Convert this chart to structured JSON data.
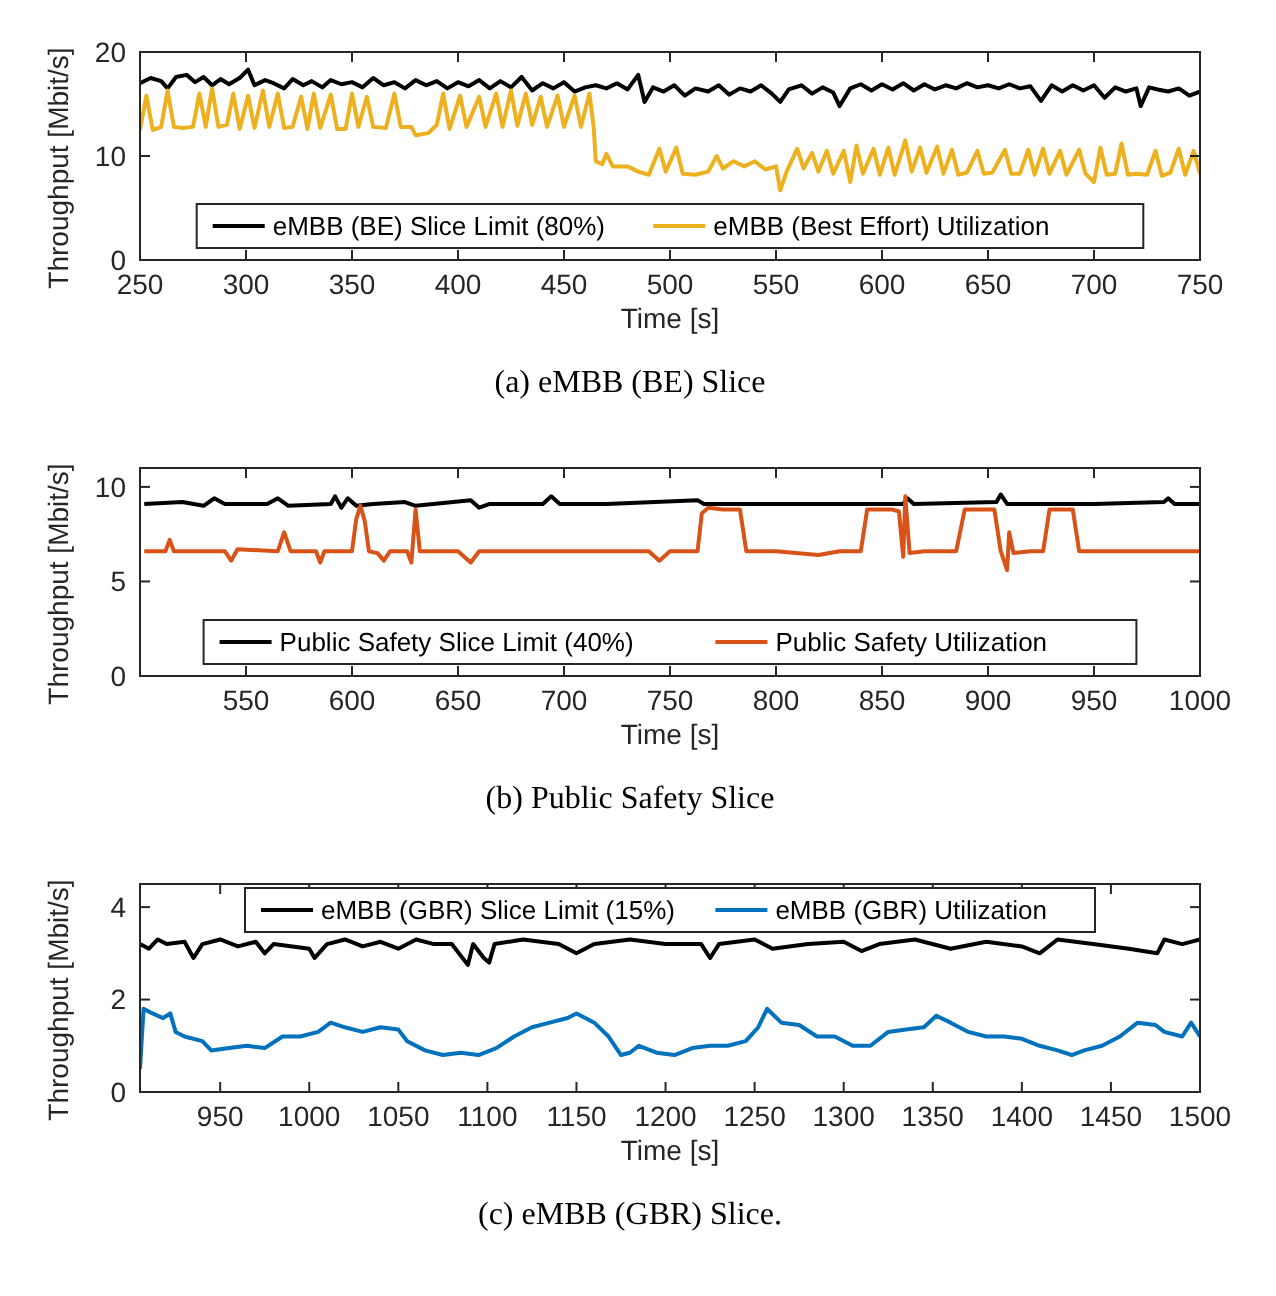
{
  "chart_data": [
    {
      "type": "line",
      "title": "(a) eMBB (BE) Slice",
      "xlabel": "Time [s]",
      "ylabel": "Throughput [Mbit/s]",
      "xlim": [
        250,
        750
      ],
      "xticks": [
        250,
        300,
        350,
        400,
        450,
        500,
        550,
        600,
        650,
        700,
        750
      ],
      "ylim": [
        0,
        20
      ],
      "yticks": [
        0,
        10,
        20
      ],
      "legend": "bottom",
      "series": [
        {
          "name": "eMBB (BE) Slice Limit (80%)",
          "color": "#000000",
          "x": [
            250,
            255,
            260,
            263,
            267,
            272,
            276,
            280,
            284,
            288,
            292,
            297,
            301,
            304,
            309,
            313,
            318,
            322,
            327,
            331,
            336,
            340,
            345,
            350,
            355,
            360,
            365,
            370,
            375,
            380,
            385,
            390,
            395,
            400,
            405,
            410,
            415,
            420,
            425,
            430,
            435,
            440,
            445,
            450,
            455,
            460,
            465,
            470,
            475,
            480,
            485,
            488,
            492,
            497,
            502,
            507,
            512,
            518,
            523,
            528,
            533,
            538,
            543,
            548,
            552,
            556,
            562,
            567,
            572,
            577,
            580,
            585,
            590,
            595,
            600,
            605,
            610,
            615,
            620,
            625,
            630,
            635,
            640,
            645,
            650,
            655,
            660,
            665,
            670,
            675,
            680,
            685,
            690,
            695,
            700,
            705,
            710,
            715,
            720,
            722,
            726,
            730,
            735,
            740,
            745,
            750
          ],
          "values": [
            17,
            17.5,
            17.2,
            16.5,
            17.6,
            17.8,
            17.1,
            17.6,
            16.8,
            17.4,
            16.9,
            17.5,
            18.3,
            16.8,
            17.3,
            17,
            16.5,
            17.4,
            16.8,
            17.2,
            16.6,
            17.3,
            16.9,
            17.1,
            16.6,
            17.5,
            16.8,
            17.1,
            16.5,
            17.3,
            16.8,
            17.2,
            16.5,
            17.1,
            16.7,
            17.3,
            16.5,
            17.2,
            16.6,
            17.6,
            16.3,
            17,
            16.5,
            17.1,
            16.2,
            16.6,
            16.8,
            16.5,
            17,
            16.4,
            17.8,
            15.2,
            16.6,
            16.2,
            16.8,
            15.8,
            16.5,
            16.2,
            16.8,
            15.9,
            16.5,
            16.2,
            16.8,
            16,
            15.2,
            16.4,
            16.8,
            16,
            16.6,
            16.1,
            14.8,
            16.5,
            16.9,
            16.3,
            16.9,
            16.4,
            17,
            16.3,
            16.9,
            16.4,
            16.8,
            16.5,
            17,
            16.6,
            16.8,
            16.5,
            16.9,
            16.5,
            16.7,
            15.3,
            16.8,
            16.2,
            16.8,
            16.3,
            16.8,
            15.6,
            16.6,
            16.2,
            16.5,
            14.8,
            16.6,
            16.4,
            16.2,
            16.5,
            15.8,
            16.2
          ]
        },
        {
          "name": "eMBB (Best Effort) Utilization",
          "color": "#edb120",
          "x": [
            250,
            253,
            256,
            260,
            263,
            266,
            270,
            275,
            278,
            281,
            284,
            287,
            291,
            294,
            297,
            301,
            304,
            308,
            311,
            315,
            318,
            322,
            326,
            329,
            332,
            335,
            340,
            343,
            347,
            350,
            353,
            357,
            360,
            366,
            370,
            373,
            378,
            380,
            386,
            390,
            393,
            396,
            401,
            404,
            410,
            413,
            418,
            421,
            425,
            428,
            432,
            435,
            439,
            442,
            447,
            450,
            455,
            458,
            462,
            464,
            465,
            468,
            470,
            473,
            480,
            485,
            490,
            495,
            498,
            503,
            506,
            512,
            518,
            522,
            525,
            530,
            535,
            540,
            545,
            550,
            552,
            555,
            560,
            563,
            567,
            570,
            574,
            577,
            582,
            585,
            588,
            591,
            596,
            599,
            603,
            606,
            611,
            614,
            618,
            621,
            626,
            629,
            633,
            636,
            640,
            645,
            648,
            652,
            658,
            661,
            665,
            669,
            672,
            676,
            679,
            684,
            687,
            693,
            696,
            700,
            703,
            706,
            710,
            713,
            716,
            720,
            725,
            729,
            732,
            736,
            740,
            743,
            747,
            750
          ],
          "values": [
            12.5,
            15.8,
            12.5,
            12.8,
            16.3,
            12.8,
            12.7,
            12.8,
            16,
            12.8,
            16.5,
            12.8,
            13,
            16,
            12.6,
            15.8,
            12.7,
            16.3,
            12.8,
            16,
            12.7,
            12.8,
            15.7,
            12.6,
            16,
            12.7,
            15.9,
            12.6,
            12.6,
            16,
            12.8,
            15.7,
            12.8,
            12.7,
            16,
            12.8,
            12.8,
            12,
            12.2,
            13,
            16,
            12.6,
            15.8,
            12.8,
            15.7,
            12.8,
            16,
            12.8,
            16.3,
            12.9,
            16,
            13,
            15.7,
            12.8,
            15.8,
            12.8,
            15.8,
            12.8,
            16,
            12.8,
            9.5,
            9.2,
            10.2,
            9,
            9,
            8.5,
            8.2,
            10.7,
            8.5,
            10.8,
            8.3,
            8.2,
            8.5,
            10,
            8.8,
            9.5,
            9,
            9.5,
            8.7,
            9,
            6.7,
            8.5,
            10.7,
            8.8,
            10.3,
            8.5,
            10.5,
            8.3,
            10.5,
            7.5,
            11,
            8.3,
            10.7,
            8.2,
            10.8,
            8.2,
            11.5,
            8.5,
            10.8,
            8.4,
            10.9,
            8.3,
            10.6,
            8.2,
            8.4,
            10.5,
            8.3,
            8.4,
            10.6,
            8.3,
            8.3,
            10.6,
            8.2,
            10.7,
            8.3,
            10.5,
            8.2,
            10.6,
            8.3,
            7.5,
            10.8,
            8.2,
            8.3,
            11.2,
            8.2,
            8.3,
            8.2,
            10.5,
            8.1,
            8.4,
            10.7,
            8.2,
            10.5,
            8.3
          ]
        }
      ]
    },
    {
      "type": "line",
      "title": "(b) Public Safety Slice",
      "xlabel": "Time [s]",
      "ylabel": "Throughput [Mbit/s]",
      "xlim": [
        500,
        1000
      ],
      "xticks": [
        550,
        600,
        650,
        700,
        750,
        800,
        850,
        900,
        950,
        1000
      ],
      "ylim": [
        0,
        11
      ],
      "yticks": [
        0,
        5,
        10
      ],
      "legend": "bottom",
      "series": [
        {
          "name": "Public Safety Slice Limit (40%)",
          "color": "#000000",
          "x": [
            502,
            520,
            530,
            535,
            540,
            560,
            565,
            570,
            590,
            592,
            595,
            598,
            602,
            610,
            625,
            630,
            656,
            660,
            665,
            690,
            694,
            698,
            720,
            763,
            766,
            800,
            860,
            862,
            865,
            904,
            906,
            909,
            950,
            983,
            985,
            988,
            1000
          ],
          "values": [
            9.1,
            9.2,
            9,
            9.4,
            9.1,
            9.1,
            9.4,
            9,
            9.1,
            9.5,
            8.9,
            9.4,
            9,
            9.1,
            9.2,
            9,
            9.3,
            8.9,
            9.1,
            9.1,
            9.5,
            9.1,
            9.1,
            9.3,
            9.1,
            9.1,
            9.1,
            9.4,
            9.1,
            9.2,
            9.6,
            9.1,
            9.1,
            9.2,
            9.4,
            9.1,
            9.1
          ]
        },
        {
          "name": "Public Safety Utilization",
          "color": "#d95319",
          "x": [
            502,
            512,
            514,
            516,
            540,
            543,
            546,
            565,
            568,
            571,
            583,
            585,
            587,
            600,
            602,
            604,
            606,
            608,
            612,
            615,
            618,
            626,
            628,
            630,
            632,
            650,
            656,
            660,
            700,
            740,
            745,
            750,
            760,
            763,
            765,
            768,
            775,
            780,
            783,
            786,
            800,
            820,
            830,
            840,
            843,
            855,
            858,
            860,
            861,
            863,
            870,
            885,
            889,
            900,
            903,
            906,
            909,
            910,
            912,
            920,
            926,
            929,
            940,
            943,
            960,
            980,
            1000
          ],
          "values": [
            6.6,
            6.6,
            7.2,
            6.6,
            6.6,
            6.1,
            6.7,
            6.6,
            7.6,
            6.6,
            6.6,
            6,
            6.6,
            6.6,
            8.3,
            9,
            8.2,
            6.6,
            6.5,
            6.1,
            6.6,
            6.6,
            6,
            8.8,
            6.6,
            6.6,
            6,
            6.6,
            6.6,
            6.6,
            6.1,
            6.6,
            6.6,
            6.6,
            8.6,
            8.9,
            8.8,
            8.8,
            8.8,
            6.6,
            6.6,
            6.4,
            6.6,
            6.6,
            8.8,
            8.8,
            8.7,
            6.3,
            9.5,
            6.5,
            6.6,
            6.6,
            8.8,
            8.8,
            8.8,
            6.6,
            5.6,
            7.6,
            6.5,
            6.6,
            6.6,
            8.8,
            8.8,
            6.6,
            6.6,
            6.6,
            6.6
          ]
        }
      ]
    },
    {
      "type": "line",
      "title": "(c) eMBB (GBR) Slice.",
      "xlabel": "Time [s]",
      "ylabel": "Throughput [Mbit/s]",
      "xlim": [
        905,
        1500
      ],
      "xticks": [
        950,
        1000,
        1050,
        1100,
        1150,
        1200,
        1250,
        1300,
        1350,
        1400,
        1450,
        1500
      ],
      "ylim": [
        0,
        4.5
      ],
      "yticks": [
        0,
        2,
        4
      ],
      "legend": "top",
      "series": [
        {
          "name": "eMBB (GBR) Slice Limit (15%)",
          "color": "#000000",
          "x": [
            905,
            910,
            915,
            920,
            930,
            935,
            940,
            950,
            960,
            970,
            975,
            980,
            1000,
            1003,
            1010,
            1020,
            1030,
            1040,
            1050,
            1060,
            1070,
            1080,
            1089,
            1092,
            1098,
            1101,
            1104,
            1120,
            1140,
            1150,
            1160,
            1180,
            1200,
            1220,
            1225,
            1230,
            1250,
            1260,
            1280,
            1300,
            1310,
            1320,
            1340,
            1360,
            1380,
            1400,
            1410,
            1420,
            1440,
            1460,
            1476,
            1480,
            1490,
            1500
          ],
          "values": [
            3.2,
            3.1,
            3.3,
            3.2,
            3.25,
            2.9,
            3.2,
            3.3,
            3.15,
            3.25,
            3,
            3.2,
            3.1,
            2.9,
            3.2,
            3.3,
            3.15,
            3.25,
            3.1,
            3.3,
            3.2,
            3.2,
            2.75,
            3.2,
            2.9,
            2.8,
            3.2,
            3.3,
            3.2,
            3,
            3.2,
            3.3,
            3.2,
            3.2,
            2.9,
            3.2,
            3.3,
            3.1,
            3.2,
            3.25,
            3.05,
            3.2,
            3.3,
            3.1,
            3.25,
            3.15,
            3,
            3.3,
            3.2,
            3.1,
            3,
            3.3,
            3.2,
            3.3
          ]
        },
        {
          "name": "eMBB (GBR) Utilization",
          "color": "#0072bd",
          "x": [
            905,
            907,
            912,
            918,
            922,
            925,
            930,
            940,
            945,
            955,
            965,
            975,
            985,
            995,
            1005,
            1012,
            1020,
            1030,
            1040,
            1050,
            1055,
            1065,
            1075,
            1085,
            1095,
            1105,
            1115,
            1125,
            1135,
            1145,
            1150,
            1160,
            1168,
            1175,
            1180,
            1185,
            1195,
            1205,
            1215,
            1225,
            1235,
            1245,
            1252,
            1257,
            1265,
            1275,
            1285,
            1295,
            1305,
            1315,
            1325,
            1335,
            1345,
            1352,
            1360,
            1370,
            1380,
            1390,
            1400,
            1410,
            1420,
            1428,
            1435,
            1445,
            1455,
            1465,
            1475,
            1480,
            1490,
            1495,
            1500
          ],
          "values": [
            0.5,
            1.8,
            1.7,
            1.6,
            1.7,
            1.3,
            1.2,
            1.1,
            0.9,
            0.95,
            1,
            0.95,
            1.2,
            1.2,
            1.3,
            1.5,
            1.4,
            1.3,
            1.4,
            1.35,
            1.1,
            0.9,
            0.8,
            0.85,
            0.8,
            0.95,
            1.2,
            1.4,
            1.5,
            1.6,
            1.7,
            1.5,
            1.2,
            0.8,
            0.85,
            1,
            0.85,
            0.8,
            0.95,
            1,
            1,
            1.1,
            1.4,
            1.8,
            1.5,
            1.45,
            1.2,
            1.2,
            1,
            1,
            1.3,
            1.35,
            1.4,
            1.65,
            1.5,
            1.3,
            1.2,
            1.2,
            1.15,
            1,
            0.9,
            0.8,
            0.9,
            1,
            1.2,
            1.5,
            1.45,
            1.3,
            1.2,
            1.5,
            1.2
          ]
        }
      ]
    }
  ]
}
